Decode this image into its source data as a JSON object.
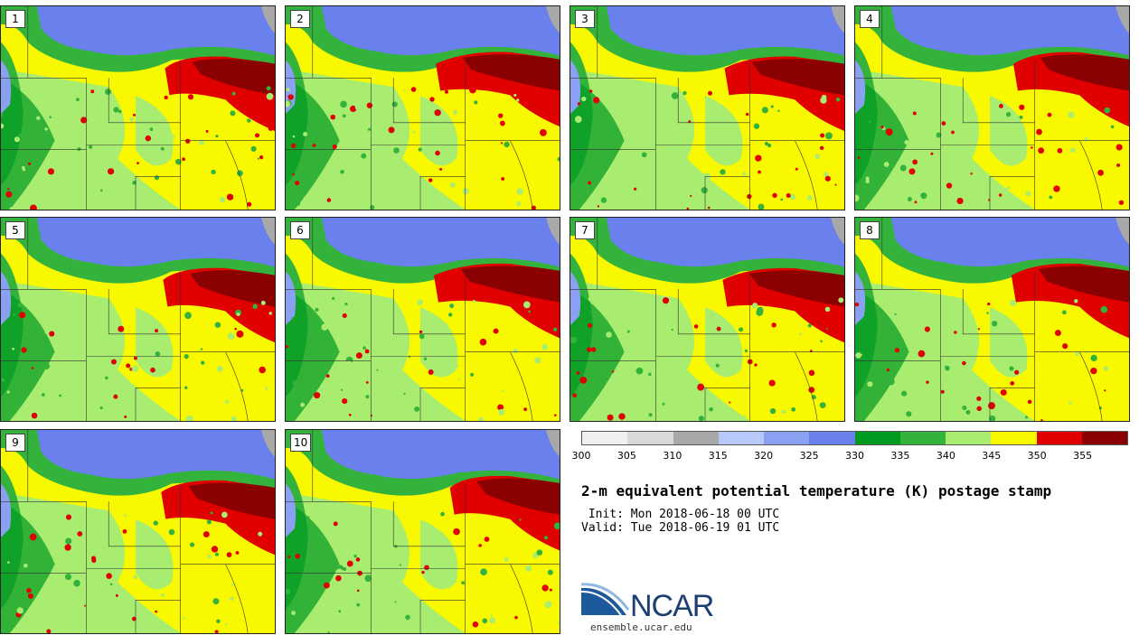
{
  "panels": [
    {
      "label": "1"
    },
    {
      "label": "2"
    },
    {
      "label": "3"
    },
    {
      "label": "4"
    },
    {
      "label": "5"
    },
    {
      "label": "6"
    },
    {
      "label": "7"
    },
    {
      "label": "8"
    },
    {
      "label": "9"
    },
    {
      "label": "10"
    }
  ],
  "colorbar": {
    "colors": [
      "#f0f0f0",
      "#d9d9d9",
      "#a8a8a8",
      "#b8c8f8",
      "#8aa0f0",
      "#6a80ec",
      "#009a20",
      "#33b23c",
      "#a8ec70",
      "#f8f800",
      "#e00000",
      "#8b0000"
    ],
    "ticks": [
      "300",
      "305",
      "310",
      "315",
      "320",
      "325",
      "330",
      "335",
      "340",
      "345",
      "350",
      "355"
    ]
  },
  "title": "2-m equivalent potential temperature (K) postage stamp",
  "init": " Init: Mon 2018-06-18 00 UTC",
  "valid": "Valid: Tue 2018-06-19 01 UTC",
  "logo": {
    "name": "NCAR",
    "url": "ensemble.ucar.edu"
  }
}
